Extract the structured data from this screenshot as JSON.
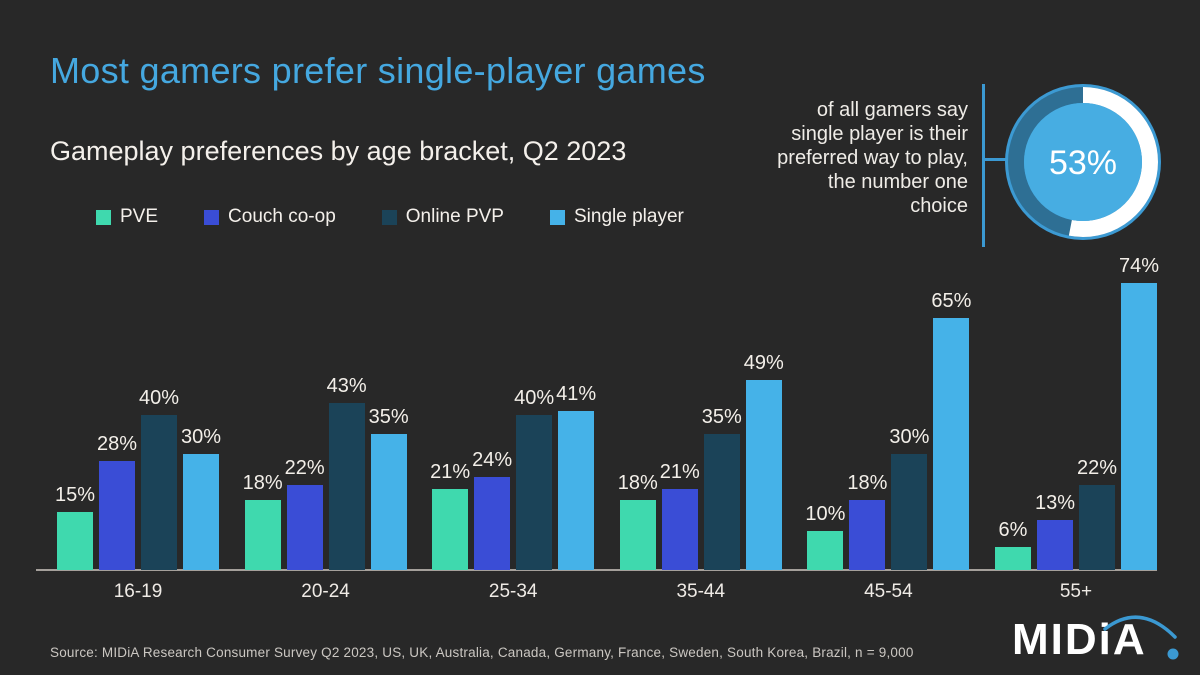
{
  "header": {
    "title": "Most gamers prefer single-player games",
    "subtitle": "Gameplay preferences by age bracket, Q2 2023"
  },
  "legend": {
    "items": [
      {
        "label": "PVE",
        "color": "#3FD9AE"
      },
      {
        "label": "Couch co-op",
        "color": "#3A4DD6"
      },
      {
        "label": "Online PVP",
        "color": "#1B4358"
      },
      {
        "label": "Single player",
        "color": "#45B2E8"
      }
    ]
  },
  "callout": {
    "lines": [
      "of all gamers say",
      "single player is their",
      "preferred way to play,",
      "the number one",
      "choice"
    ],
    "percent": 53,
    "percent_label": "53%",
    "accent_color": "#3B99D2",
    "donut_colors": {
      "rim": "#3C9AD3",
      "track": "#2E6F94",
      "arc": "#FFFFFF",
      "center": "#47ADE2"
    }
  },
  "chart_data": {
    "type": "bar",
    "title": "Gameplay preferences by age bracket, Q2 2023",
    "categories": [
      "16-19",
      "20-24",
      "25-34",
      "35-44",
      "45-54",
      "55+"
    ],
    "series": [
      {
        "name": "PVE",
        "color": "#3FD9AE",
        "values": [
          15,
          18,
          21,
          18,
          10,
          6
        ]
      },
      {
        "name": "Couch co-op",
        "color": "#3A4DD6",
        "values": [
          28,
          22,
          24,
          21,
          18,
          13
        ]
      },
      {
        "name": "Online PVP",
        "color": "#1B4358",
        "values": [
          40,
          43,
          40,
          35,
          30,
          22
        ]
      },
      {
        "name": "Single player",
        "color": "#45B2E8",
        "values": [
          30,
          35,
          41,
          49,
          65,
          74
        ]
      }
    ],
    "value_suffix": "%",
    "ylim": [
      0,
      100
    ],
    "grid": false,
    "value_labels": true,
    "legend_position": "top-left"
  },
  "footer": {
    "source": "Source: MIDiA Research Consumer Survey Q2 2023, US, UK, Australia, Canada, Germany, France, Sweden, South Korea, Brazil, n = 9,000",
    "logo_text": "MIDiA"
  }
}
